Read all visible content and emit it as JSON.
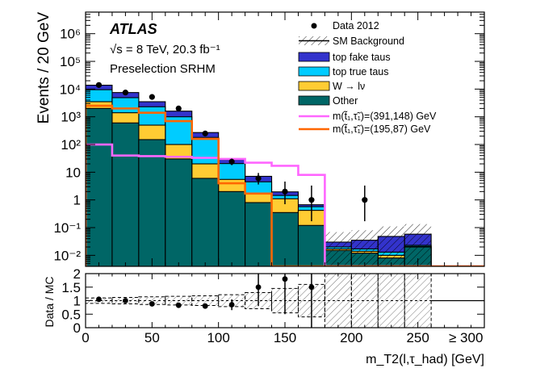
{
  "chart_data": {
    "type": "histogram",
    "experiment": "ATLAS",
    "energy_text": "√s = 8 TeV, 20.3 fb⁻¹",
    "region": "Preselection SRHM",
    "xlabel": "m_T2(l,τ_had)  [GeV]",
    "ylabel": "Events / 20 GeV",
    "ylabel_ratio": "Data / MC",
    "overflow_label": "≥ 300",
    "x_ticks": [
      "0",
      "50",
      "100",
      "150",
      "200",
      "250"
    ],
    "y_ticks_main": [
      "10⁻²",
      "10⁻¹",
      "1",
      "10",
      "10²",
      "10³",
      "10⁴",
      "10⁵",
      "10⁶"
    ],
    "y_ticks_ratio": [
      "0",
      "0.5",
      "1",
      "1.5",
      "2"
    ],
    "xlim": [
      0,
      300
    ],
    "ylim_main": [
      0.004,
      6000000
    ],
    "ylim_ratio": [
      0,
      2
    ],
    "bin_edges": [
      0,
      20,
      40,
      60,
      80,
      100,
      120,
      140,
      160,
      180,
      200,
      220,
      240,
      260
    ],
    "stack": [
      {
        "name": "Other",
        "color": "#006666",
        "values": [
          2000,
          600,
          150,
          30,
          6,
          2,
          0.8,
          0.35,
          0.12,
          0.015,
          0.012,
          0.008,
          0.02
        ]
      },
      {
        "name": "W → lν",
        "color": "#ffcc33",
        "values": [
          1500,
          800,
          350,
          70,
          14,
          3.5,
          0.9,
          0.75,
          0.3,
          0.002,
          0.002,
          0.002,
          0.001
        ]
      },
      {
        "name": "top true taus",
        "color": "#00ccff",
        "values": [
          6000,
          3500,
          1800,
          900,
          160,
          15,
          2.8,
          0.35,
          0.15,
          0.003,
          0.003,
          0.003,
          0.002
        ]
      },
      {
        "name": "top fake taus",
        "color": "#3333cc",
        "values": [
          4300,
          2600,
          1200,
          600,
          90,
          8,
          2.6,
          0.5,
          0.1,
          0.01,
          0.018,
          0.035,
          0.035
        ]
      }
    ],
    "data_label": "Data 2012",
    "data_points": [
      {
        "x": 10,
        "y": 14000,
        "y_low": 13200,
        "y_high": 14800
      },
      {
        "x": 30,
        "y": 7500,
        "y_low": 7000,
        "y_high": 8000
      },
      {
        "x": 50,
        "y": 5200,
        "y_low": 4800,
        "y_high": 5600
      },
      {
        "x": 70,
        "y": 2000,
        "y_low": 1800,
        "y_high": 2200
      },
      {
        "x": 90,
        "y": 250,
        "y_low": 220,
        "y_high": 285
      },
      {
        "x": 110,
        "y": 24,
        "y_low": 18,
        "y_high": 31
      },
      {
        "x": 130,
        "y": 6,
        "y_low": 3.6,
        "y_high": 9.4
      },
      {
        "x": 150,
        "y": 2,
        "y_low": 0.7,
        "y_high": 4.6
      },
      {
        "x": 170,
        "y": 1,
        "y_low": 0.17,
        "y_high": 3.3
      },
      {
        "x": 210,
        "y": 1,
        "y_low": 0.17,
        "y_high": 3.3
      }
    ],
    "bkg_label": "SM Background",
    "signal_lines": [
      {
        "name": "m(t̃₁,τ̃₁)=(391,148) GeV",
        "color": "#ff66ff",
        "values": [
          100,
          40,
          38,
          36,
          33,
          30,
          22,
          17,
          8,
          0.004,
          0.004,
          0.004,
          0.004
        ]
      },
      {
        "name": "m(t̃₁,τ̃₁)=(195,87) GeV",
        "color": "#ff6600",
        "values": [
          2500,
          2000,
          1400,
          700,
          160,
          4,
          1.7,
          0.004,
          0.004,
          0.004,
          0.004,
          0.004,
          0.004
        ]
      }
    ],
    "ratio_points": [
      {
        "x": 10,
        "y": 1.05,
        "err": 0.05
      },
      {
        "x": 30,
        "y": 1.0,
        "err": 0.04
      },
      {
        "x": 50,
        "y": 0.88,
        "err": 0.05
      },
      {
        "x": 70,
        "y": 0.83,
        "err": 0.06
      },
      {
        "x": 90,
        "y": 0.8,
        "err": 0.08
      },
      {
        "x": 110,
        "y": 0.85,
        "err": 0.2
      },
      {
        "x": 130,
        "y": 1.5,
        "err": 0.7
      },
      {
        "x": 150,
        "y": 1.8,
        "err": 1.3
      },
      {
        "x": 170,
        "y": 1.5,
        "err": 1.7
      }
    ],
    "ratio_band": [
      {
        "x0": 0,
        "x1": 20,
        "lo": 0.9,
        "hi": 1.1
      },
      {
        "x0": 20,
        "x1": 40,
        "lo": 0.88,
        "hi": 1.12
      },
      {
        "x0": 40,
        "x1": 60,
        "lo": 0.86,
        "hi": 1.14
      },
      {
        "x0": 60,
        "x1": 80,
        "lo": 0.84,
        "hi": 1.16
      },
      {
        "x0": 80,
        "x1": 100,
        "lo": 0.82,
        "hi": 1.18
      },
      {
        "x0": 100,
        "x1": 120,
        "lo": 0.78,
        "hi": 1.22
      },
      {
        "x0": 120,
        "x1": 140,
        "lo": 0.7,
        "hi": 1.3
      },
      {
        "x0": 140,
        "x1": 160,
        "lo": 0.55,
        "hi": 1.45
      },
      {
        "x0": 160,
        "x1": 180,
        "lo": 0.4,
        "hi": 1.6
      },
      {
        "x0": 180,
        "x1": 200,
        "lo": 0.0,
        "hi": 2.0
      },
      {
        "x0": 200,
        "x1": 220,
        "lo": 0.0,
        "hi": 2.1
      },
      {
        "x0": 220,
        "x1": 240,
        "lo": 0.0,
        "hi": 2.1
      },
      {
        "x0": 240,
        "x1": 260,
        "lo": 0.0,
        "hi": 2.1
      }
    ]
  }
}
